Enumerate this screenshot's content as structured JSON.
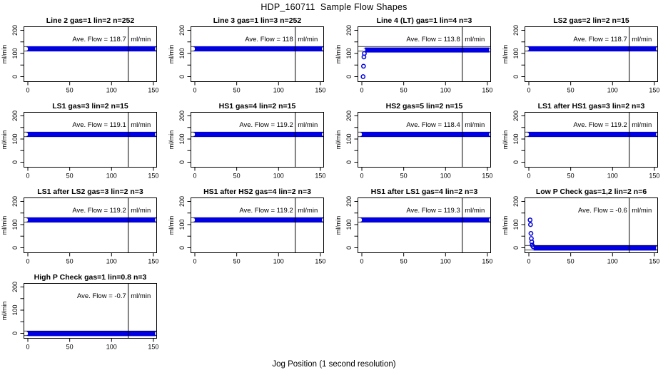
{
  "figure": {
    "title": "HDP_160711  Sample Flow Shapes",
    "xlabel": "Jog Position (1 second resolution)"
  },
  "chart_data": {
    "type": "scatter",
    "title": "HDP_160711  Sample Flow Shapes",
    "xlabel": "Jog Position (1 second resolution)",
    "ylabel": "ml/min",
    "xlim": [
      -7,
      157
    ],
    "ylim": [
      -20,
      220
    ],
    "xticks": [
      0,
      50,
      100,
      150
    ],
    "yticks_all": [
      0,
      50,
      100,
      150,
      200
    ],
    "yticks_labeled": [
      0,
      100,
      200
    ],
    "vline_x": 120,
    "ref_band_halfwidth": 10,
    "annotation_prefix": "Ave. Flow = ",
    "unit": "ml/min",
    "point_color": "#0000e0",
    "cap_color": "#fffff0",
    "grid": false,
    "panels": [
      {
        "title": "Line 2 gas=1 lin=2 n=252",
        "ave_flow": 118.7,
        "ave_flow_label": "118.7",
        "ref_center": 120,
        "band_y": 120,
        "band_x": [
          0,
          152
        ],
        "lead_points": []
      },
      {
        "title": "Line 3 gas=1 lin=3 n=252",
        "ave_flow": 118,
        "ave_flow_label": "118",
        "ref_center": 120,
        "band_y": 120,
        "band_x": [
          0,
          152
        ],
        "lead_points": []
      },
      {
        "title": "Line 4 (LT) gas=1 lin=4 n=3",
        "ave_flow": 113.8,
        "ave_flow_label": "113.8",
        "ref_center": 120,
        "band_y": 115,
        "band_x": [
          4,
          152
        ],
        "lead_points": [
          [
            1.5,
            0
          ],
          [
            2,
            45
          ],
          [
            2.5,
            85
          ],
          [
            3,
            100
          ]
        ]
      },
      {
        "title": "LS2 gas=2 lin=2 n=15",
        "ave_flow": 118.7,
        "ave_flow_label": "118.7",
        "ref_center": 120,
        "band_y": 120,
        "band_x": [
          0,
          152
        ],
        "lead_points": []
      },
      {
        "title": "LS1 gas=3 lin=2 n=15",
        "ave_flow": 119.1,
        "ave_flow_label": "119.1",
        "ref_center": 120,
        "band_y": 120,
        "band_x": [
          0,
          152
        ],
        "lead_points": []
      },
      {
        "title": "HS1 gas=4 lin=2 n=15",
        "ave_flow": 119.2,
        "ave_flow_label": "119.2",
        "ref_center": 120,
        "band_y": 120,
        "band_x": [
          0,
          152
        ],
        "lead_points": []
      },
      {
        "title": "HS2 gas=5 lin=2 n=15",
        "ave_flow": 118.4,
        "ave_flow_label": "118.4",
        "ref_center": 120,
        "band_y": 120,
        "band_x": [
          0,
          152
        ],
        "lead_points": []
      },
      {
        "title": "LS1 after HS1 gas=3 lin=2 n=3",
        "ave_flow": 119.2,
        "ave_flow_label": "119.2",
        "ref_center": 120,
        "band_y": 120,
        "band_x": [
          0,
          152
        ],
        "lead_points": []
      },
      {
        "title": "LS1 after LS2 gas=3 lin=2 n=3",
        "ave_flow": 119.2,
        "ave_flow_label": "119.2",
        "ref_center": 120,
        "band_y": 120,
        "band_x": [
          0,
          152
        ],
        "lead_points": []
      },
      {
        "title": "HS1 after HS2 gas=4 lin=2 n=3",
        "ave_flow": 119.2,
        "ave_flow_label": "119.2",
        "ref_center": 120,
        "band_y": 120,
        "band_x": [
          0,
          152
        ],
        "lead_points": []
      },
      {
        "title": "HS1 after LS1 gas=4 lin=2 n=3",
        "ave_flow": 119.3,
        "ave_flow_label": "119.3",
        "ref_center": 120,
        "band_y": 120,
        "band_x": [
          0,
          152
        ],
        "lead_points": []
      },
      {
        "title": "Low P Check gas=1,2 lin=2 n=6",
        "ave_flow": -0.6,
        "ave_flow_label": "-0.6",
        "ref_center": 0,
        "band_y": -1,
        "band_x": [
          6,
          152
        ],
        "lead_points": [
          [
            1.5,
            120
          ],
          [
            2,
            100
          ],
          [
            2.5,
            62
          ],
          [
            3,
            40
          ],
          [
            3.5,
            25
          ],
          [
            4,
            12
          ],
          [
            5,
            5
          ]
        ]
      },
      {
        "title": "High P Check gas=1 lin=0.8 n=3",
        "ave_flow": -0.7,
        "ave_flow_label": "-0.7",
        "ref_center": 0,
        "band_y": -1,
        "band_x": [
          0,
          152
        ],
        "lead_points": []
      }
    ]
  }
}
